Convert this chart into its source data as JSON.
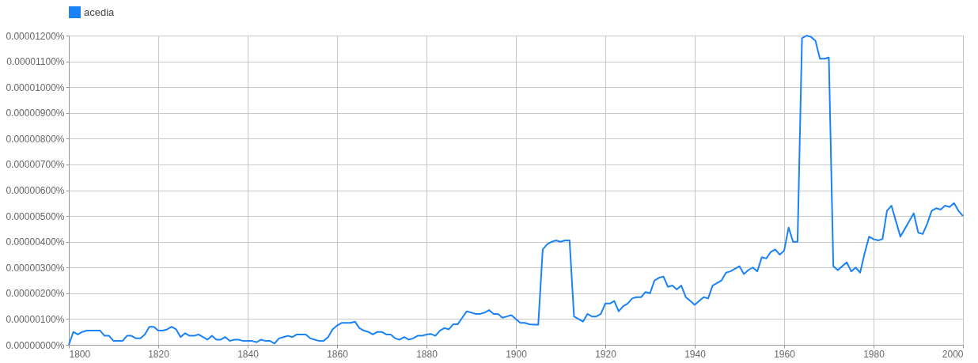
{
  "chart_data": {
    "type": "line",
    "legend": "top",
    "grid": true,
    "marker": "none",
    "line_style": "solid",
    "xlim": [
      1800,
      2000
    ],
    "xticks": [
      1800,
      1820,
      1840,
      1860,
      1880,
      1900,
      1920,
      1940,
      1960,
      1980,
      2000
    ],
    "ylim": [
      0,
      1.2e-05
    ],
    "yticks": [
      {
        "value": 0,
        "label": "0.00000000%"
      },
      {
        "value": 1e-06,
        "label": "0.00000100%"
      },
      {
        "value": 2e-06,
        "label": "0.00000200%"
      },
      {
        "value": 3e-06,
        "label": "0.00000300%"
      },
      {
        "value": 4e-06,
        "label": "0.00000400%"
      },
      {
        "value": 5e-06,
        "label": "0.00000500%"
      },
      {
        "value": 6e-06,
        "label": "0.00000600%"
      },
      {
        "value": 7e-06,
        "label": "0.00000700%"
      },
      {
        "value": 8e-06,
        "label": "0.00000800%"
      },
      {
        "value": 9e-06,
        "label": "0.00000900%"
      },
      {
        "value": 1e-05,
        "label": "0.00001000%"
      },
      {
        "value": 1.1e-05,
        "label": "0.00001100%"
      },
      {
        "value": 1.2e-05,
        "label": "0.00001200%"
      }
    ],
    "x": [
      1800,
      1801,
      1802,
      1803,
      1804,
      1805,
      1806,
      1807,
      1808,
      1809,
      1810,
      1811,
      1812,
      1813,
      1814,
      1815,
      1816,
      1817,
      1818,
      1819,
      1820,
      1821,
      1822,
      1823,
      1824,
      1825,
      1826,
      1827,
      1828,
      1829,
      1830,
      1831,
      1832,
      1833,
      1834,
      1835,
      1836,
      1837,
      1838,
      1839,
      1840,
      1841,
      1842,
      1843,
      1844,
      1845,
      1846,
      1847,
      1848,
      1849,
      1850,
      1851,
      1852,
      1853,
      1854,
      1855,
      1856,
      1857,
      1858,
      1859,
      1860,
      1861,
      1862,
      1863,
      1864,
      1865,
      1866,
      1867,
      1868,
      1869,
      1870,
      1871,
      1872,
      1873,
      1874,
      1875,
      1876,
      1877,
      1878,
      1879,
      1880,
      1881,
      1882,
      1883,
      1884,
      1885,
      1886,
      1887,
      1888,
      1889,
      1890,
      1891,
      1892,
      1893,
      1894,
      1895,
      1896,
      1897,
      1898,
      1899,
      1900,
      1901,
      1902,
      1903,
      1904,
      1905,
      1906,
      1907,
      1908,
      1909,
      1910,
      1911,
      1912,
      1913,
      1914,
      1915,
      1916,
      1917,
      1918,
      1919,
      1920,
      1921,
      1922,
      1923,
      1924,
      1925,
      1926,
      1927,
      1928,
      1929,
      1930,
      1931,
      1932,
      1933,
      1934,
      1935,
      1936,
      1937,
      1938,
      1939,
      1940,
      1941,
      1942,
      1943,
      1944,
      1945,
      1946,
      1947,
      1948,
      1949,
      1950,
      1951,
      1952,
      1953,
      1954,
      1955,
      1956,
      1957,
      1958,
      1959,
      1960,
      1961,
      1962,
      1963,
      1964,
      1965,
      1966,
      1967,
      1968,
      1969,
      1970,
      1971,
      1972,
      1973,
      1974,
      1975,
      1976,
      1977,
      1978,
      1979,
      1980,
      1981,
      1982,
      1983,
      1984,
      1985,
      1986,
      1987,
      1988,
      1989,
      1990,
      1991,
      1992,
      1993,
      1994,
      1995,
      1996,
      1997,
      1998,
      1999,
      2000
    ],
    "series": [
      {
        "name": "acedia",
        "color": "#1a82f7",
        "values": [
          0,
          5e-07,
          4e-07,
          5e-07,
          5.5e-07,
          5.5e-07,
          5.5e-07,
          5.5e-07,
          3.5e-07,
          3.5e-07,
          1.5e-07,
          1.5e-07,
          1.5e-07,
          3.5e-07,
          3.5e-07,
          2.5e-07,
          2.5e-07,
          4e-07,
          7e-07,
          7e-07,
          5.5e-07,
          5.5e-07,
          6e-07,
          7e-07,
          6e-07,
          3e-07,
          4.5e-07,
          3.5e-07,
          3.5e-07,
          4e-07,
          3e-07,
          2e-07,
          3.5e-07,
          2e-07,
          2e-07,
          3e-07,
          1.5e-07,
          2e-07,
          2e-07,
          1.5e-07,
          1.5e-07,
          1.5e-07,
          1e-07,
          2e-07,
          1.5e-07,
          1.5e-07,
          5e-08,
          2.5e-07,
          3e-07,
          3.5e-07,
          3e-07,
          4e-07,
          4e-07,
          4e-07,
          2.5e-07,
          2e-07,
          1.5e-07,
          1.5e-07,
          3e-07,
          6e-07,
          7.5e-07,
          8.5e-07,
          8.5e-07,
          8.5e-07,
          9e-07,
          6.5e-07,
          5.5e-07,
          5e-07,
          4e-07,
          5e-07,
          5e-07,
          4e-07,
          4e-07,
          2.5e-07,
          2e-07,
          3e-07,
          2e-07,
          2.5e-07,
          3.5e-07,
          3.5e-07,
          4e-07,
          4.2e-07,
          3.5e-07,
          5.5e-07,
          6.5e-07,
          6e-07,
          8e-07,
          8e-07,
          1.05e-06,
          1.3e-06,
          1.25e-06,
          1.2e-06,
          1.2e-06,
          1.25e-06,
          1.35e-06,
          1.2e-06,
          1.2e-06,
          1.05e-06,
          1.1e-06,
          1.15e-06,
          1e-06,
          8.5e-07,
          8.5e-07,
          8e-07,
          7.8e-07,
          7.8e-07,
          3.7e-06,
          3.9e-06,
          4e-06,
          4.05e-06,
          4e-06,
          4.05e-06,
          4.05e-06,
          1.1e-06,
          1e-06,
          9e-07,
          1.2e-06,
          1.1e-06,
          1.1e-06,
          1.2e-06,
          1.6e-06,
          1.6e-06,
          1.7e-06,
          1.3e-06,
          1.5e-06,
          1.6e-06,
          1.8e-06,
          1.85e-06,
          1.85e-06,
          2.05e-06,
          2e-06,
          2.5e-06,
          2.6e-06,
          2.65e-06,
          2.25e-06,
          2.3e-06,
          2.15e-06,
          2.3e-06,
          1.85e-06,
          1.7e-06,
          1.55e-06,
          1.7e-06,
          1.85e-06,
          1.8e-06,
          2.3e-06,
          2.4e-06,
          2.5e-06,
          2.8e-06,
          2.85e-06,
          2.95e-06,
          3.05e-06,
          2.75e-06,
          2.9e-06,
          3e-06,
          2.85e-06,
          3.4e-06,
          3.35e-06,
          3.6e-06,
          3.7e-06,
          3.5e-06,
          3.65e-06,
          4.55e-06,
          4e-06,
          4e-06,
          1.19e-05,
          1.2e-05,
          1.195e-05,
          1.18e-05,
          1.11e-05,
          1.11e-05,
          1.115e-05,
          3.05e-06,
          2.9e-06,
          3.05e-06,
          3.2e-06,
          2.85e-06,
          3e-06,
          2.8e-06,
          3.55e-06,
          4.2e-06,
          4.1e-06,
          4.05e-06,
          4.1e-06,
          5.2e-06,
          5.4e-06,
          4.8e-06,
          4.2e-06,
          4.5e-06,
          4.8e-06,
          5.1e-06,
          4.35e-06,
          4.3e-06,
          4.7e-06,
          5.2e-06,
          5.3e-06,
          5.25e-06,
          5.4e-06,
          5.35e-06,
          5.5e-06,
          5.2e-06,
          5e-06
        ]
      }
    ]
  }
}
